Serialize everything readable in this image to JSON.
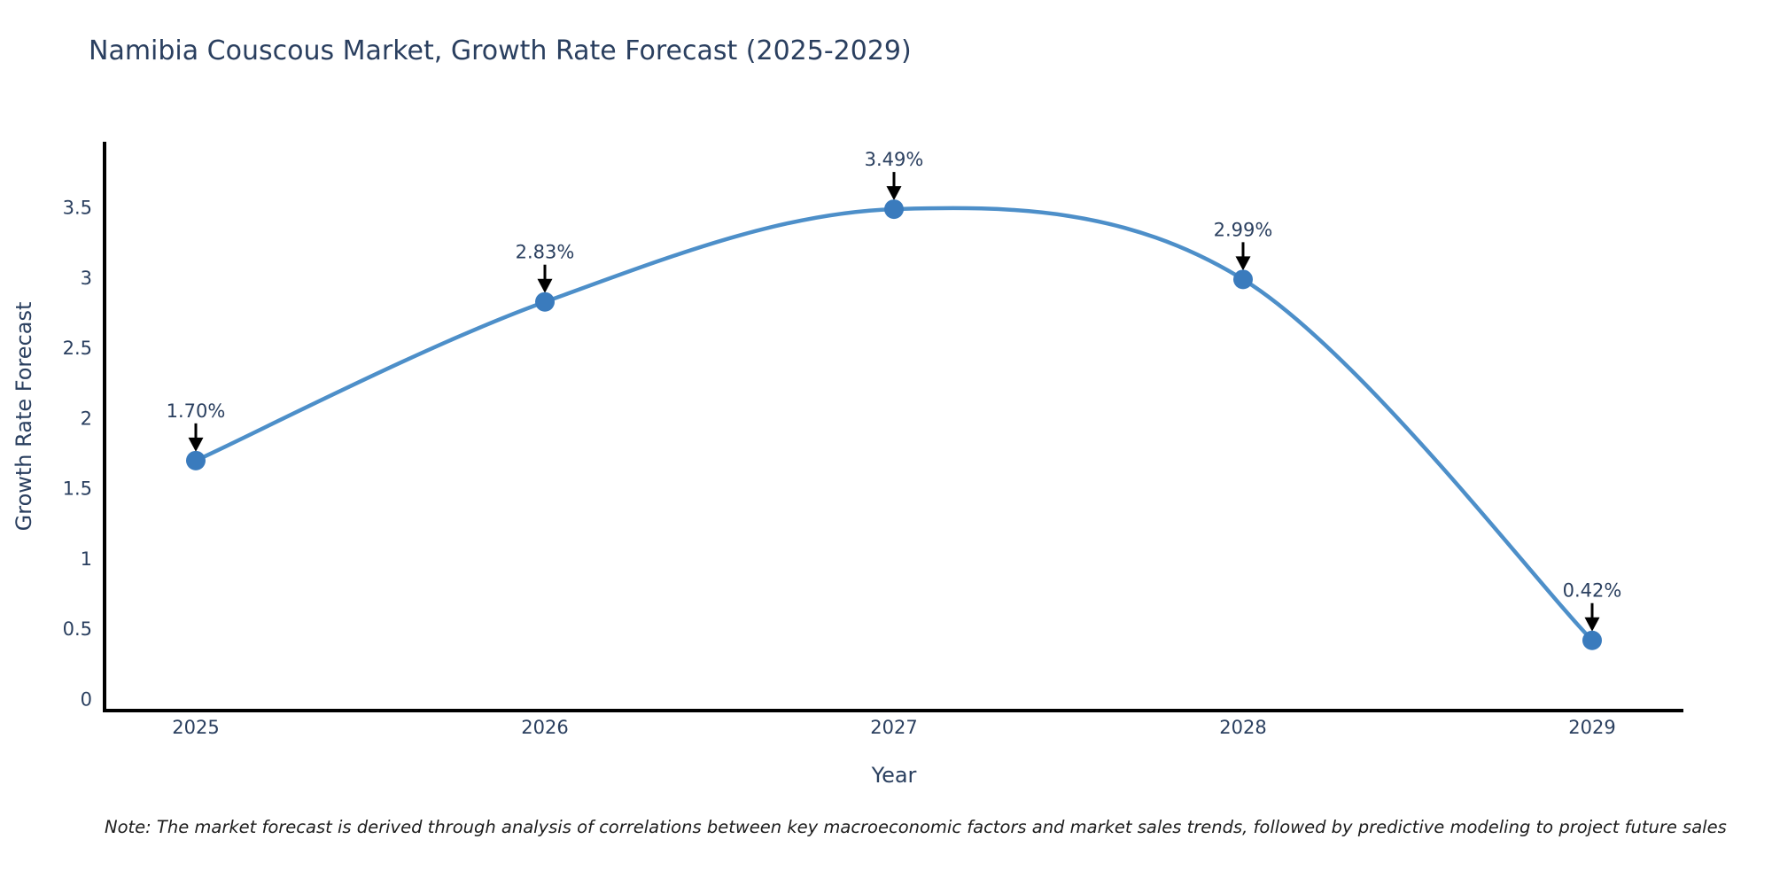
{
  "note": "Note: The market forecast is derived through analysis of correlations between key macroeconomic factors and market sales trends, followed by predictive modeling to project future sales",
  "chart_data": {
    "type": "line",
    "title": "Namibia Couscous Market, Growth Rate Forecast (2025-2029)",
    "xlabel": "Year",
    "ylabel": "Growth Rate Forecast",
    "categories": [
      "2025",
      "2026",
      "2027",
      "2028",
      "2029"
    ],
    "series": [
      {
        "name": "Growth Rate Forecast",
        "values": [
          1.7,
          2.83,
          3.49,
          2.99,
          0.42
        ],
        "labels": [
          "1.70%",
          "2.83%",
          "3.49%",
          "2.99%",
          "0.42%"
        ]
      }
    ],
    "ytick_labels": [
      "0",
      "0.5",
      "1",
      "1.5",
      "2",
      "2.5",
      "3",
      "3.5"
    ],
    "ytick_values": [
      0,
      0.5,
      1,
      1.5,
      2,
      2.5,
      3,
      3.5
    ],
    "ylim": [
      -0.08,
      3.97
    ],
    "line_shape": "spline",
    "grid": false,
    "legend_position": "none",
    "annotations_have_arrows": true
  },
  "colors": {
    "background": "#ffffff",
    "title_text": "#2a3f5f",
    "axis_line": "#000000",
    "tick_text": "#2a3f5f",
    "line": "#4d8fc9",
    "marker": "#3a7bbd",
    "annotation_text": "#2a3f5f",
    "annotation_arrow": "#000000",
    "note_text": "#1d1d1d"
  }
}
